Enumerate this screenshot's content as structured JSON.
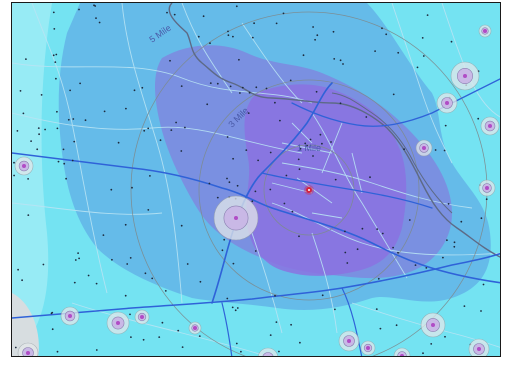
{
  "map": {
    "ring_labels": {
      "five_mile": "5 Mile",
      "three_mile": "3 Mile",
      "one_mile": "1 Mile"
    },
    "colors": {
      "background": "#74e3f2",
      "outer_zone": "#63b4e8",
      "mid_zone": "#7f86df",
      "inner_zone": "#8b72e0",
      "ring_stroke": "#7d8b8f",
      "highway": "#2f62d8",
      "local_road": "#b9e4f4",
      "river": "#5d6a86",
      "town_marker": "#b04cc6",
      "center_marker": "#d4233d",
      "dot": "#1d2a3d"
    },
    "icons": [
      "center-pin-icon",
      "town-marker-icon"
    ]
  }
}
